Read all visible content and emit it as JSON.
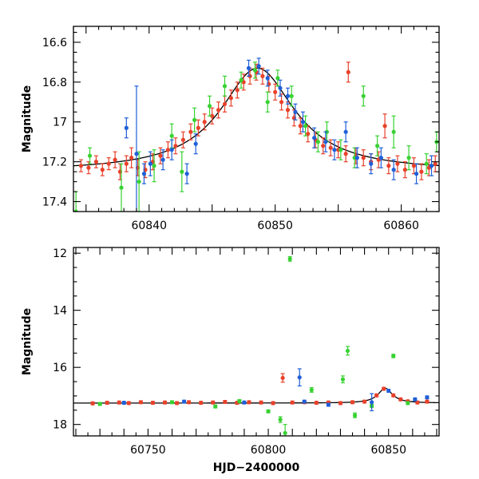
{
  "chart_data": [
    {
      "type": "scatter",
      "panel": "top",
      "xlabel": "",
      "ylabel": "Magnitude",
      "xlim": [
        60834,
        60863
      ],
      "ylim": [
        17.45,
        16.52
      ],
      "y_inverted": true,
      "x_ticks": [
        60840,
        60850,
        60860
      ],
      "x_tick_labels": [
        "60840",
        "60850",
        "60860"
      ],
      "y_ticks": [
        16.6,
        16.8,
        17.0,
        17.2,
        17.4
      ],
      "y_tick_labels": [
        "16.6",
        "16.8",
        "17",
        "17.2",
        "17.4"
      ],
      "grid": false,
      "legend": "none",
      "model_curve": {
        "color": "#000000",
        "peak_x": 60848.6,
        "peak_mag": 16.73,
        "baseline_mag": 17.25,
        "width": 3.6
      },
      "series": [
        {
          "color": "#e8412a",
          "points": [
            [
              60834.6,
              17.22,
              0.03
            ],
            [
              60835.2,
              17.23,
              0.03
            ],
            [
              60835.8,
              17.2,
              0.03
            ],
            [
              60836.3,
              17.24,
              0.03
            ],
            [
              60836.8,
              17.21,
              0.03
            ],
            [
              60837.3,
              17.19,
              0.04
            ],
            [
              60837.7,
              17.25,
              0.04
            ],
            [
              60838.2,
              17.21,
              0.04
            ],
            [
              60838.6,
              17.18,
              0.05
            ],
            [
              60839.1,
              17.23,
              0.04
            ],
            [
              60839.7,
              17.24,
              0.04
            ],
            [
              60840.3,
              17.2,
              0.04
            ],
            [
              60840.9,
              17.17,
              0.04
            ],
            [
              60841.5,
              17.14,
              0.04
            ],
            [
              60842.1,
              17.12,
              0.04
            ],
            [
              60842.7,
              17.09,
              0.04
            ],
            [
              60843.3,
              17.05,
              0.04
            ],
            [
              60843.9,
              17.03,
              0.04
            ],
            [
              60844.4,
              17.0,
              0.04
            ],
            [
              60845.0,
              16.97,
              0.04
            ],
            [
              60845.5,
              16.94,
              0.04
            ],
            [
              60846.0,
              16.91,
              0.04
            ],
            [
              60846.5,
              16.88,
              0.04
            ],
            [
              60847.0,
              16.84,
              0.04
            ],
            [
              60847.5,
              16.8,
              0.04
            ],
            [
              60848.0,
              16.77,
              0.04
            ],
            [
              60848.5,
              16.75,
              0.04
            ],
            [
              60849.0,
              16.77,
              0.04
            ],
            [
              60849.5,
              16.81,
              0.04
            ],
            [
              60850.0,
              16.85,
              0.04
            ],
            [
              60850.5,
              16.9,
              0.04
            ],
            [
              60851.0,
              16.94,
              0.04
            ],
            [
              60851.5,
              16.98,
              0.04
            ],
            [
              60852.0,
              17.02,
              0.04
            ],
            [
              60852.6,
              17.06,
              0.04
            ],
            [
              60853.2,
              17.09,
              0.04
            ],
            [
              60853.8,
              17.12,
              0.04
            ],
            [
              60854.4,
              17.13,
              0.04
            ],
            [
              60855.0,
              17.14,
              0.04
            ],
            [
              60855.6,
              17.16,
              0.04
            ],
            [
              60855.8,
              16.75,
              0.05
            ],
            [
              60856.4,
              17.17,
              0.04
            ],
            [
              60857.0,
              17.18,
              0.04
            ],
            [
              60857.6,
              17.2,
              0.04
            ],
            [
              60858.2,
              17.19,
              0.04
            ],
            [
              60858.7,
              17.02,
              0.06
            ],
            [
              60859.0,
              17.22,
              0.04
            ],
            [
              60859.7,
              17.21,
              0.04
            ],
            [
              60860.3,
              17.24,
              0.04
            ],
            [
              60861.0,
              17.22,
              0.04
            ],
            [
              60861.6,
              17.25,
              0.04
            ],
            [
              60862.2,
              17.23,
              0.04
            ],
            [
              60862.7,
              17.21,
              0.04
            ]
          ]
        },
        {
          "color": "#38d232",
          "points": [
            [
              60834.2,
              17.45,
              0.1
            ],
            [
              60835.3,
              17.17,
              0.04
            ],
            [
              60837.8,
              17.33,
              0.12
            ],
            [
              60839.2,
              17.3,
              0.15
            ],
            [
              60840.4,
              17.22,
              0.08
            ],
            [
              60841.8,
              17.07,
              0.06
            ],
            [
              60842.6,
              17.25,
              0.1
            ],
            [
              60843.6,
              16.99,
              0.06
            ],
            [
              60844.8,
              16.92,
              0.05
            ],
            [
              60846.0,
              16.82,
              0.05
            ],
            [
              60847.3,
              16.79,
              0.04
            ],
            [
              60848.4,
              16.74,
              0.04
            ],
            [
              60849.4,
              16.9,
              0.05
            ],
            [
              60850.2,
              16.78,
              0.04
            ],
            [
              60851.3,
              16.87,
              0.05
            ],
            [
              60852.4,
              17.02,
              0.05
            ],
            [
              60853.4,
              17.1,
              0.05
            ],
            [
              60854.1,
              17.05,
              0.05
            ],
            [
              60855.2,
              17.14,
              0.05
            ],
            [
              60856.3,
              17.18,
              0.05
            ],
            [
              60857.0,
              16.87,
              0.05
            ],
            [
              60858.1,
              17.12,
              0.05
            ],
            [
              60859.4,
              17.05,
              0.08
            ],
            [
              60860.6,
              17.18,
              0.06
            ],
            [
              60862.0,
              17.21,
              0.05
            ],
            [
              60862.8,
              17.1,
              0.05
            ]
          ]
        },
        {
          "color": "#1f5fd8",
          "points": [
            [
              60838.2,
              17.03,
              0.05
            ],
            [
              60839.6,
              17.26,
              0.05
            ],
            [
              60840.1,
              17.21,
              0.06
            ],
            [
              60841.1,
              17.19,
              0.05
            ],
            [
              60841.8,
              17.14,
              0.05
            ],
            [
              60843.0,
              17.26,
              0.05
            ],
            [
              60843.7,
              17.11,
              0.05
            ],
            [
              60847.9,
              16.73,
              0.04
            ],
            [
              60848.7,
              16.72,
              0.04
            ],
            [
              60849.4,
              16.78,
              0.04
            ],
            [
              60850.4,
              16.83,
              0.04
            ],
            [
              60851.0,
              16.87,
              0.04
            ],
            [
              60851.6,
              16.95,
              0.04
            ],
            [
              60852.2,
              17.0,
              0.05
            ],
            [
              60853.1,
              17.08,
              0.05
            ],
            [
              60854.0,
              17.1,
              0.05
            ],
            [
              60854.7,
              17.14,
              0.05
            ],
            [
              60855.6,
              17.05,
              0.05
            ],
            [
              60856.5,
              17.18,
              0.05
            ],
            [
              60857.6,
              17.21,
              0.05
            ],
            [
              60858.4,
              17.18,
              0.05
            ],
            [
              60859.4,
              17.24,
              0.05
            ],
            [
              60861.2,
              17.26,
              0.05
            ],
            [
              60862.4,
              17.22,
              0.05
            ],
            [
              60839.0,
              17.16,
              0.34
            ]
          ]
        }
      ]
    },
    {
      "type": "scatter",
      "panel": "bottom",
      "xlabel": "HJD−2400000",
      "ylabel": "Magnitude",
      "xlim": [
        60719,
        60871
      ],
      "ylim": [
        18.4,
        11.8
      ],
      "y_inverted": true,
      "x_ticks": [
        60750,
        60800,
        60850
      ],
      "x_tick_labels": [
        "60750",
        "60800",
        "60850"
      ],
      "y_ticks": [
        12,
        14,
        16,
        18
      ],
      "y_tick_labels": [
        "12",
        "14",
        "16",
        "18"
      ],
      "grid": false,
      "legend": "none",
      "model_curve": {
        "color": "#000000",
        "peak_x": 60848.6,
        "peak_mag": 16.73,
        "baseline_mag": 17.25,
        "width": 3.6
      },
      "series": [
        {
          "color": "#e8412a",
          "points": [
            [
              60727,
              17.26,
              0.05
            ],
            [
              60733,
              17.24,
              0.05
            ],
            [
              60738,
              17.23,
              0.05
            ],
            [
              60742,
              17.25,
              0.05
            ],
            [
              60747,
              17.22,
              0.05
            ],
            [
              60752,
              17.24,
              0.05
            ],
            [
              60757,
              17.23,
              0.05
            ],
            [
              60762,
              17.25,
              0.05
            ],
            [
              60767,
              17.22,
              0.05
            ],
            [
              60772,
              17.24,
              0.05
            ],
            [
              60777,
              17.23,
              0.05
            ],
            [
              60782,
              17.21,
              0.05
            ],
            [
              60787,
              17.24,
              0.05
            ],
            [
              60792,
              17.22,
              0.05
            ],
            [
              60797,
              17.23,
              0.05
            ],
            [
              60802,
              17.25,
              0.05
            ],
            [
              60806,
              16.37,
              0.15
            ],
            [
              60810,
              17.23,
              0.05
            ],
            [
              60815,
              17.22,
              0.05
            ],
            [
              60820,
              17.24,
              0.05
            ],
            [
              60825,
              17.23,
              0.05
            ],
            [
              60830,
              17.25,
              0.05
            ],
            [
              60835,
              17.22,
              0.05
            ],
            [
              60840,
              17.2,
              0.05
            ],
            [
              60845,
              16.98,
              0.05
            ],
            [
              60848,
              16.75,
              0.05
            ],
            [
              60852,
              16.98,
              0.05
            ],
            [
              60855,
              17.12,
              0.05
            ],
            [
              60858,
              17.19,
              0.05
            ],
            [
              60862,
              17.23,
              0.05
            ],
            [
              60866,
              17.2,
              0.05
            ]
          ]
        },
        {
          "color": "#38d232",
          "points": [
            [
              60730,
              17.28,
              0.05
            ],
            [
              60760,
              17.22,
              0.05
            ],
            [
              60778,
              17.37,
              0.05
            ],
            [
              60788,
              17.18,
              0.05
            ],
            [
              60800,
              17.54,
              0.05
            ],
            [
              60805,
              17.83,
              0.1
            ],
            [
              60807,
              18.3,
              0.3
            ],
            [
              60809,
              12.2,
              0.08
            ],
            [
              60818,
              16.79,
              0.08
            ],
            [
              60831,
              16.42,
              0.12
            ],
            [
              60833,
              15.42,
              0.15
            ],
            [
              60852,
              15.6,
              0.06
            ],
            [
              60836,
              17.68,
              0.08
            ],
            [
              60843,
              17.35,
              0.05
            ],
            [
              60858,
              17.25,
              0.05
            ]
          ]
        },
        {
          "color": "#1f5fd8",
          "points": [
            [
              60740,
              17.24,
              0.05
            ],
            [
              60765,
              17.2,
              0.05
            ],
            [
              60790,
              17.23,
              0.05
            ],
            [
              60813,
              16.35,
              0.3
            ],
            [
              60815,
              17.2,
              0.05
            ],
            [
              60825,
              17.31,
              0.05
            ],
            [
              60843,
              17.22,
              0.3
            ],
            [
              60850,
              16.82,
              0.05
            ],
            [
              60861,
              17.12,
              0.05
            ],
            [
              60866,
              17.05,
              0.05
            ]
          ]
        }
      ]
    }
  ]
}
